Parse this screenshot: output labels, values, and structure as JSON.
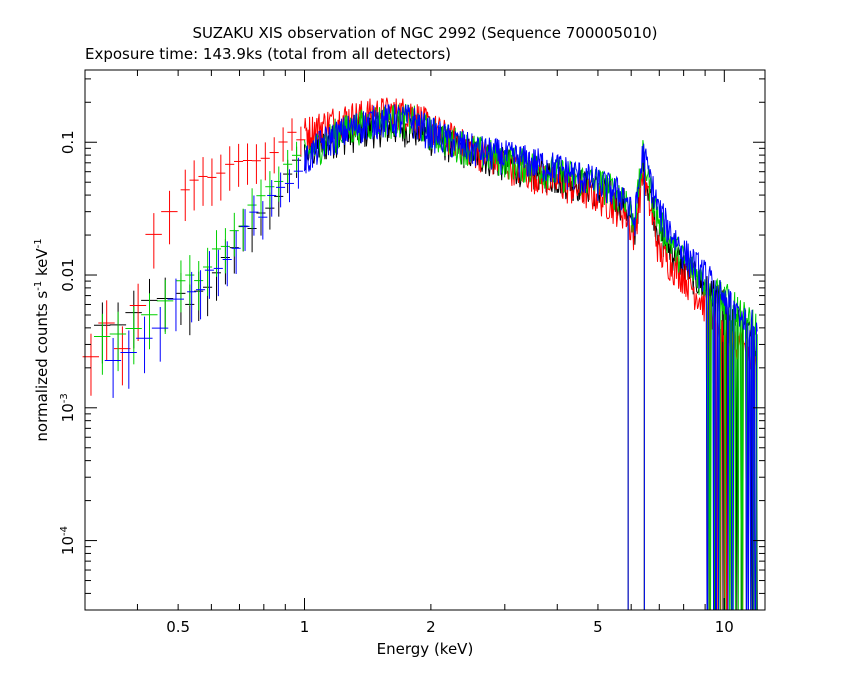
{
  "chart_data": {
    "type": "scatter",
    "title": "SUZAKU XIS observation of NGC 2992 (Sequence 700005010)",
    "subtitle": "Exposure time: 143.9ks (total from all detectors)",
    "xlabel": "Energy (keV)",
    "ylabel_main": "normalized counts s",
    "ylabel_exp1": "-1",
    "ylabel_mid": " keV",
    "ylabel_exp2": "-1",
    "x_scale": "log",
    "y_scale": "log",
    "xlim": [
      0.3,
      12.5
    ],
    "ylim": [
      3e-05,
      0.35
    ],
    "x_ticks": [
      {
        "value": 0.5,
        "label": "0.5"
      },
      {
        "value": 1,
        "label": "1"
      },
      {
        "value": 2,
        "label": "2"
      },
      {
        "value": 5,
        "label": "5"
      },
      {
        "value": 10,
        "label": "10"
      }
    ],
    "y_ticks": [
      {
        "value": 0.1,
        "label": "0.1"
      },
      {
        "value": 0.01,
        "label": "0.01"
      },
      {
        "value": 0.001,
        "label": "10",
        "exp": "-3"
      },
      {
        "value": 0.0001,
        "label": "10",
        "exp": "-4"
      }
    ],
    "grid": false,
    "series": [
      {
        "color": "#000000",
        "points": [
          [
            0.33,
            0.004
          ],
          [
            0.45,
            0.006
          ],
          [
            0.5,
            0.007
          ],
          [
            0.55,
            0.0065
          ],
          [
            0.6,
            0.008
          ],
          [
            0.7,
            0.02
          ],
          [
            0.8,
            0.03
          ],
          [
            0.9,
            0.05
          ],
          [
            1.0,
            0.08
          ],
          [
            1.2,
            0.11
          ],
          [
            1.5,
            0.13
          ],
          [
            1.8,
            0.13
          ],
          [
            2.0,
            0.11
          ],
          [
            2.5,
            0.085
          ],
          [
            3.0,
            0.07
          ],
          [
            4.0,
            0.055
          ],
          [
            5.0,
            0.045
          ],
          [
            5.8,
            0.035
          ],
          [
            6.1,
            0.02
          ],
          [
            6.4,
            0.07
          ],
          [
            7.0,
            0.02
          ],
          [
            8.0,
            0.012
          ],
          [
            9.0,
            0.008
          ],
          [
            10.0,
            0.006
          ],
          [
            11.0,
            0.004
          ],
          [
            12.0,
            0.003
          ]
        ]
      },
      {
        "color": "#ff0000",
        "points": [
          [
            0.31,
            0.0025
          ],
          [
            0.35,
            0.005
          ],
          [
            0.38,
            0.0025
          ],
          [
            0.4,
            0.006
          ],
          [
            0.42,
            0.015
          ],
          [
            0.45,
            0.025
          ],
          [
            0.5,
            0.04
          ],
          [
            0.55,
            0.05
          ],
          [
            0.6,
            0.06
          ],
          [
            0.7,
            0.07
          ],
          [
            0.8,
            0.08
          ],
          [
            0.9,
            0.1
          ],
          [
            1.0,
            0.12
          ],
          [
            1.2,
            0.15
          ],
          [
            1.5,
            0.17
          ],
          [
            1.8,
            0.17
          ],
          [
            2.0,
            0.13
          ],
          [
            2.5,
            0.09
          ],
          [
            3.0,
            0.07
          ],
          [
            4.0,
            0.05
          ],
          [
            5.0,
            0.04
          ],
          [
            5.8,
            0.03
          ],
          [
            6.1,
            0.02
          ],
          [
            6.4,
            0.06
          ],
          [
            7.0,
            0.015
          ],
          [
            8.0,
            0.01
          ],
          [
            9.0,
            0.006
          ],
          [
            10.0,
            0.004
          ],
          [
            11.0,
            0.003
          ],
          [
            12.0,
            0.002
          ]
        ]
      },
      {
        "color": "#00d000",
        "points": [
          [
            0.33,
            0.0035
          ],
          [
            0.45,
            0.005
          ],
          [
            0.5,
            0.008
          ],
          [
            0.6,
            0.012
          ],
          [
            0.7,
            0.025
          ],
          [
            0.8,
            0.04
          ],
          [
            0.9,
            0.06
          ],
          [
            1.0,
            0.08
          ],
          [
            1.2,
            0.12
          ],
          [
            1.5,
            0.15
          ],
          [
            1.8,
            0.15
          ],
          [
            2.0,
            0.12
          ],
          [
            2.5,
            0.09
          ],
          [
            3.0,
            0.075
          ],
          [
            4.0,
            0.06
          ],
          [
            5.0,
            0.05
          ],
          [
            5.8,
            0.04
          ],
          [
            6.1,
            0.025
          ],
          [
            6.4,
            0.08
          ],
          [
            7.0,
            0.025
          ],
          [
            8.0,
            0.013
          ],
          [
            9.0,
            0.009
          ],
          [
            10.0,
            0.007
          ],
          [
            11.0,
            0.005
          ],
          [
            12.0,
            0.004
          ]
        ]
      },
      {
        "color": "#0000ff",
        "points": [
          [
            0.35,
            0.002
          ],
          [
            0.48,
            0.0055
          ],
          [
            0.55,
            0.007
          ],
          [
            0.65,
            0.015
          ],
          [
            0.75,
            0.025
          ],
          [
            0.85,
            0.04
          ],
          [
            0.95,
            0.06
          ],
          [
            1.1,
            0.1
          ],
          [
            1.3,
            0.13
          ],
          [
            1.5,
            0.15
          ],
          [
            1.8,
            0.15
          ],
          [
            2.0,
            0.12
          ],
          [
            2.5,
            0.09
          ],
          [
            3.0,
            0.08
          ],
          [
            4.0,
            0.065
          ],
          [
            5.0,
            0.05
          ],
          [
            5.8,
            0.04
          ],
          [
            6.1,
            0.025
          ],
          [
            6.4,
            0.085
          ],
          [
            7.0,
            0.03
          ],
          [
            8.0,
            0.015
          ],
          [
            9.0,
            0.01
          ],
          [
            10.0,
            0.007
          ],
          [
            11.0,
            0.005
          ],
          [
            12.0,
            0.004
          ]
        ]
      }
    ]
  }
}
